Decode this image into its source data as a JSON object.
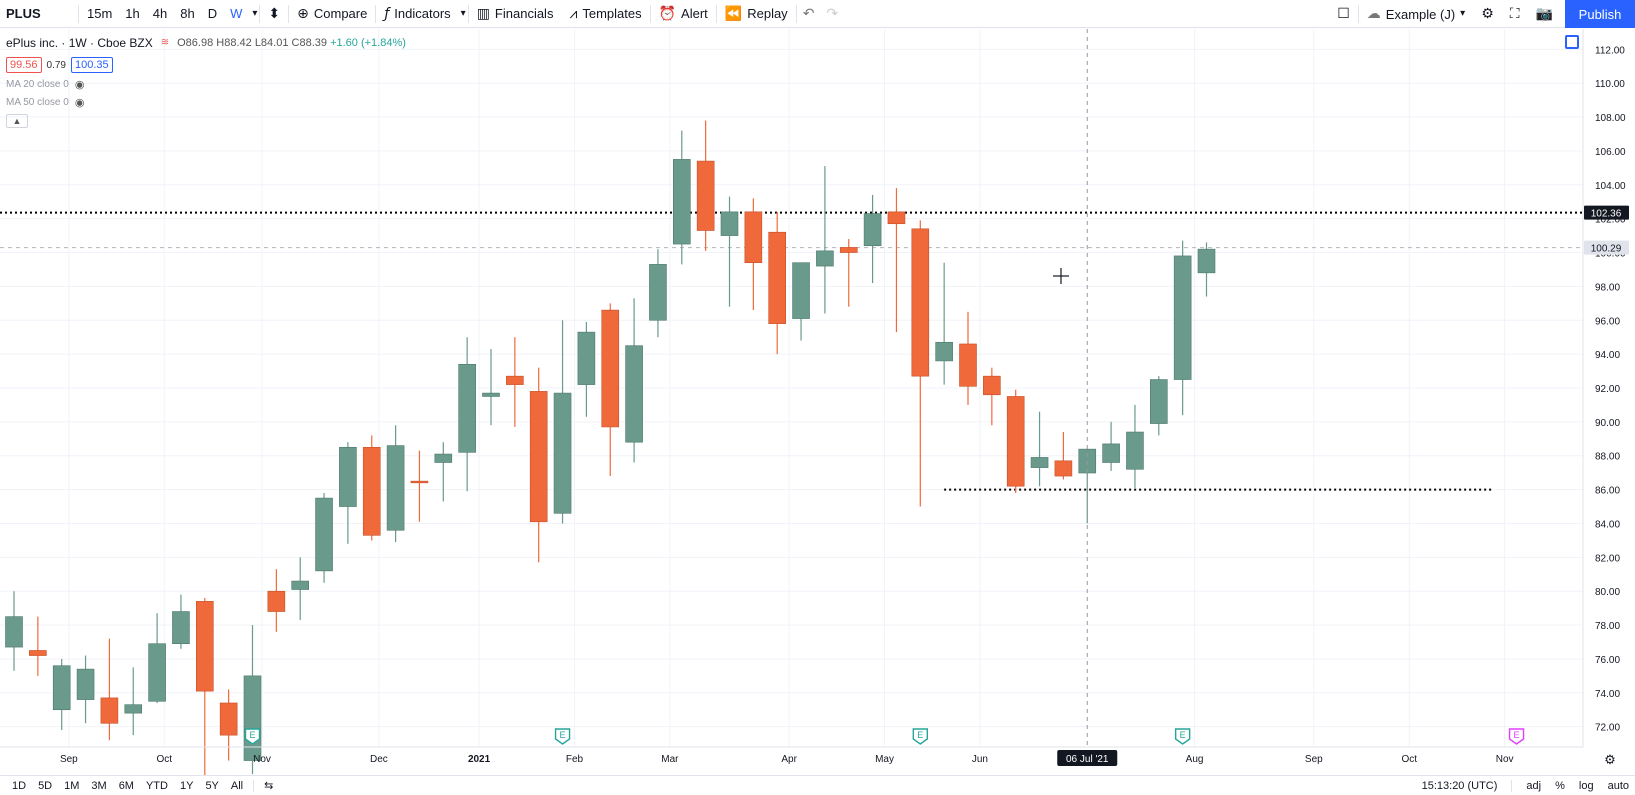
{
  "toolbar": {
    "symbol": "PLUS",
    "intervals": [
      "15m",
      "1h",
      "4h",
      "8h",
      "D",
      "W"
    ],
    "active_interval": "W",
    "compare": "Compare",
    "indicators": "Indicators",
    "financials": "Financials",
    "templates": "Templates",
    "alert": "Alert",
    "replay": "Replay",
    "layout_name": "Example (J)",
    "publish": "Publish"
  },
  "legend": {
    "title": "ePlus inc. · 1W · Cboe BZX",
    "o": "O86.98",
    "h": "H88.42",
    "l": "L84.01",
    "c": "C88.39",
    "change": "+1.60 (+1.84%)",
    "bid": "99.56",
    "spread": "0.79",
    "ask": "100.35",
    "ma20": "MA 20 close 0",
    "ma50": "MA 50 close 0"
  },
  "bottombar": {
    "ranges": [
      "1D",
      "5D",
      "1M",
      "3M",
      "6M",
      "YTD",
      "1Y",
      "5Y",
      "All"
    ],
    "time": "15:13:20 (UTC)",
    "adj": "adj",
    "percent": "%",
    "log": "log",
    "auto": "auto"
  },
  "colors": {
    "up": "#6a9a8b",
    "down": "#f0693b",
    "accent": "#2962ff",
    "earnings": "#26a69a",
    "earnings_future": "#e040fb"
  },
  "chart_data": {
    "type": "candlestick",
    "ylim": [
      70.8,
      113.2
    ],
    "y_ticks": [
      72,
      74,
      76,
      78,
      80,
      82,
      84,
      86,
      88,
      90,
      92,
      94,
      96,
      98,
      100,
      102,
      104,
      106,
      108,
      110,
      112
    ],
    "x_labels": [
      {
        "label": "Sep",
        "i": 2.3
      },
      {
        "label": "Oct",
        "i": 6.3
      },
      {
        "label": "Nov",
        "i": 10.4
      },
      {
        "label": "Dec",
        "i": 15.3
      },
      {
        "label": "2021",
        "i": 19.5
      },
      {
        "label": "Feb",
        "i": 23.5
      },
      {
        "label": "Mar",
        "i": 27.5
      },
      {
        "label": "Apr",
        "i": 32.5
      },
      {
        "label": "May",
        "i": 36.5
      },
      {
        "label": "Jun",
        "i": 40.5
      },
      {
        "label": "Aug",
        "i": 49.5
      },
      {
        "label": "Sep",
        "i": 54.5
      },
      {
        "label": "Oct",
        "i": 58.5
      },
      {
        "label": "Nov",
        "i": 62.5
      }
    ],
    "candles": [
      {
        "o": 76.7,
        "h": 80.0,
        "l": 75.3,
        "c": 78.5
      },
      {
        "o": 76.5,
        "h": 78.5,
        "l": 75.0,
        "c": 76.2
      },
      {
        "o": 73.0,
        "h": 76.0,
        "l": 71.8,
        "c": 75.6
      },
      {
        "o": 73.6,
        "h": 76.2,
        "l": 72.2,
        "c": 75.4
      },
      {
        "o": 73.7,
        "h": 77.2,
        "l": 71.2,
        "c": 72.2
      },
      {
        "o": 72.8,
        "h": 75.5,
        "l": 71.5,
        "c": 73.3
      },
      {
        "o": 73.5,
        "h": 78.7,
        "l": 73.4,
        "c": 76.9
      },
      {
        "o": 76.9,
        "h": 79.8,
        "l": 76.6,
        "c": 78.8
      },
      {
        "o": 79.4,
        "h": 79.6,
        "l": 68.9,
        "c": 74.1
      },
      {
        "o": 73.4,
        "h": 74.2,
        "l": 70.0,
        "c": 71.5
      },
      {
        "o": 70.0,
        "h": 78.0,
        "l": 69.2,
        "c": 75.0
      },
      {
        "o": 80.0,
        "h": 81.3,
        "l": 77.6,
        "c": 78.8
      },
      {
        "o": 80.1,
        "h": 82.0,
        "l": 78.3,
        "c": 80.6
      },
      {
        "o": 81.2,
        "h": 85.8,
        "l": 80.5,
        "c": 85.5
      },
      {
        "o": 85.0,
        "h": 88.8,
        "l": 82.8,
        "c": 88.5
      },
      {
        "o": 88.5,
        "h": 89.2,
        "l": 83.0,
        "c": 83.3
      },
      {
        "o": 83.6,
        "h": 89.8,
        "l": 82.9,
        "c": 88.6
      },
      {
        "o": 86.5,
        "h": 88.3,
        "l": 84.1,
        "c": 86.4
      },
      {
        "o": 87.6,
        "h": 88.8,
        "l": 85.3,
        "c": 88.1
      },
      {
        "o": 88.2,
        "h": 95.0,
        "l": 85.9,
        "c": 93.4
      },
      {
        "o": 91.5,
        "h": 94.3,
        "l": 89.8,
        "c": 91.7
      },
      {
        "o": 92.7,
        "h": 95.0,
        "l": 89.7,
        "c": 92.2
      },
      {
        "o": 91.8,
        "h": 93.2,
        "l": 81.7,
        "c": 84.1
      },
      {
        "o": 84.6,
        "h": 96.0,
        "l": 84.0,
        "c": 91.7
      },
      {
        "o": 92.2,
        "h": 95.9,
        "l": 90.3,
        "c": 95.3
      },
      {
        "o": 96.6,
        "h": 97.0,
        "l": 86.8,
        "c": 89.7
      },
      {
        "o": 88.8,
        "h": 97.3,
        "l": 87.6,
        "c": 94.5
      },
      {
        "o": 96.0,
        "h": 100.2,
        "l": 95.0,
        "c": 99.3
      },
      {
        "o": 100.5,
        "h": 107.2,
        "l": 99.3,
        "c": 105.5
      },
      {
        "o": 105.4,
        "h": 107.8,
        "l": 100.1,
        "c": 101.3
      },
      {
        "o": 101.0,
        "h": 103.3,
        "l": 96.8,
        "c": 102.4
      },
      {
        "o": 102.4,
        "h": 103.2,
        "l": 96.6,
        "c": 99.4
      },
      {
        "o": 101.2,
        "h": 102.4,
        "l": 94.0,
        "c": 95.8
      },
      {
        "o": 96.1,
        "h": 99.2,
        "l": 94.8,
        "c": 99.4
      },
      {
        "o": 99.2,
        "h": 105.1,
        "l": 96.4,
        "c": 100.1
      },
      {
        "o": 100.3,
        "h": 100.8,
        "l": 96.8,
        "c": 100.0
      },
      {
        "o": 100.4,
        "h": 103.4,
        "l": 98.2,
        "c": 102.3
      },
      {
        "o": 102.4,
        "h": 103.8,
        "l": 95.3,
        "c": 101.7
      },
      {
        "o": 101.4,
        "h": 101.9,
        "l": 85.0,
        "c": 92.7
      },
      {
        "o": 93.6,
        "h": 99.4,
        "l": 92.2,
        "c": 94.7
      },
      {
        "o": 94.6,
        "h": 96.5,
        "l": 91.0,
        "c": 92.1
      },
      {
        "o": 92.7,
        "h": 93.2,
        "l": 89.8,
        "c": 91.6
      },
      {
        "o": 91.5,
        "h": 91.9,
        "l": 85.8,
        "c": 86.2
      },
      {
        "o": 87.3,
        "h": 90.6,
        "l": 86.2,
        "c": 87.9
      },
      {
        "o": 87.7,
        "h": 89.4,
        "l": 86.6,
        "c": 86.8
      },
      {
        "o": 86.98,
        "h": 88.42,
        "l": 84.01,
        "c": 88.39
      },
      {
        "o": 87.6,
        "h": 90.0,
        "l": 87.1,
        "c": 88.7
      },
      {
        "o": 87.2,
        "h": 91.0,
        "l": 86.1,
        "c": 89.4
      },
      {
        "o": 89.9,
        "h": 92.7,
        "l": 89.2,
        "c": 92.5
      },
      {
        "o": 92.5,
        "h": 100.7,
        "l": 90.4,
        "c": 99.8
      },
      {
        "o": 98.8,
        "h": 100.6,
        "l": 97.4,
        "c": 100.2
      }
    ],
    "hlines": [
      {
        "y": 102.36,
        "label": "102.36",
        "style": "dotted",
        "color": "#000000"
      },
      {
        "y": 86.0,
        "style": "dotted",
        "color": "#000000",
        "from_i": 39,
        "to_i": 62
      },
      {
        "y": 100.29,
        "label": "100.29",
        "style": "dashed",
        "color": "#b2b5be"
      }
    ],
    "crosshair": {
      "i": 45,
      "date_label": "06 Jul '21"
    },
    "earnings_markers": [
      {
        "i": 10,
        "label": "E"
      },
      {
        "i": 23,
        "label": "E"
      },
      {
        "i": 38,
        "label": "E"
      },
      {
        "i": 49,
        "label": "E"
      },
      {
        "i": 63,
        "label": "E",
        "future": true
      }
    ]
  }
}
